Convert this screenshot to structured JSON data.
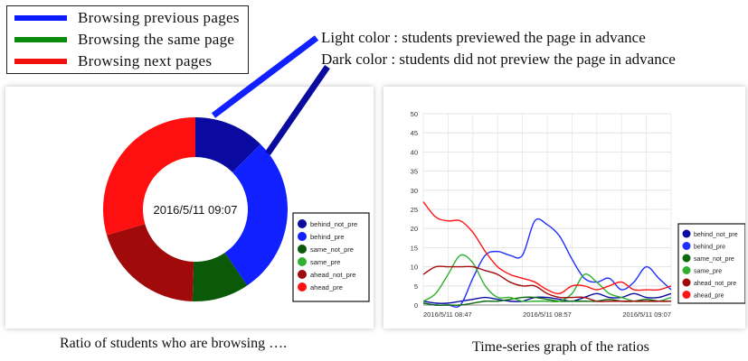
{
  "top_legend": [
    {
      "label": "Browsing previous pages",
      "color": "#0a1aff"
    },
    {
      "label": "Browsing the same page",
      "color": "#0a8a0a"
    },
    {
      "label": "Browsing next pages",
      "color": "#f01010"
    }
  ],
  "notes": {
    "light": "Light color : students previewed the page in advance",
    "dark": "Dark color : students did not preview the page in advance"
  },
  "captions": {
    "left": "Ratio of students who are browsing ….",
    "right": "Time-series graph of the ratios"
  },
  "chart_data": [
    {
      "type": "pie",
      "center_label": "2016/5/11 09:07",
      "slices": [
        {
          "name": "behind_not_pre",
          "value": 12.5,
          "color": "#0a0aa0"
        },
        {
          "name": "behind_pre",
          "value": 28,
          "color": "#1020ff"
        },
        {
          "name": "same_not_pre",
          "value": 10,
          "color": "#0a5a0a"
        },
        {
          "name": "same_pre",
          "value": 0,
          "color": "#30b030"
        },
        {
          "name": "ahead_not_pre",
          "value": 20,
          "color": "#a00a0a"
        },
        {
          "name": "ahead_pre",
          "value": 29.5,
          "color": "#ff1010"
        }
      ],
      "legend": [
        "behind_not_pre",
        "behind_pre",
        "same_not_pre",
        "same_pre",
        "ahead_not_pre",
        "ahead_pre"
      ],
      "legend_colors": [
        "#0a0aa0",
        "#1020ff",
        "#0a5a0a",
        "#30b030",
        "#a00a0a",
        "#ff1010"
      ]
    },
    {
      "type": "line",
      "yticks": [
        0,
        5,
        10,
        15,
        20,
        25,
        30,
        35,
        40,
        45,
        50
      ],
      "ylim": [
        0,
        50
      ],
      "xlim": [
        0,
        20
      ],
      "xtick_labels": [
        {
          "x": 0,
          "label": "2016/5/11 08:47"
        },
        {
          "x": 10,
          "label": "2016/5/11 08:57"
        },
        {
          "x": 20,
          "label": "2016/5/11 09:07"
        }
      ],
      "grid": true,
      "legend_position": "right",
      "series": [
        {
          "name": "behind_not_pre",
          "color": "#0a0aa0",
          "points": [
            [
              0,
              1
            ],
            [
              1,
              0.5
            ],
            [
              2,
              0.5
            ],
            [
              3,
              1
            ],
            [
              4,
              1.5
            ],
            [
              5,
              2
            ],
            [
              6,
              1.5
            ],
            [
              7,
              1
            ],
            [
              8,
              1
            ],
            [
              9,
              2
            ],
            [
              10,
              2
            ],
            [
              11,
              1.5
            ],
            [
              12,
              1
            ],
            [
              13,
              2
            ],
            [
              14,
              3
            ],
            [
              15,
              2
            ],
            [
              16,
              2
            ],
            [
              17,
              3
            ],
            [
              18,
              2
            ],
            [
              19,
              2
            ],
            [
              20,
              3
            ]
          ]
        },
        {
          "name": "behind_pre",
          "color": "#2030ff",
          "points": [
            [
              0,
              0.5
            ],
            [
              1,
              0
            ],
            [
              2,
              0
            ],
            [
              3,
              0
            ],
            [
              4,
              7
            ],
            [
              5,
              13
            ],
            [
              6,
              14
            ],
            [
              7,
              13
            ],
            [
              8,
              13
            ],
            [
              9,
              22
            ],
            [
              10,
              21
            ],
            [
              11,
              18
            ],
            [
              12,
              12
            ],
            [
              13,
              7
            ],
            [
              14,
              6
            ],
            [
              15,
              7
            ],
            [
              16,
              4
            ],
            [
              17,
              6
            ],
            [
              18,
              10
            ],
            [
              19,
              7
            ],
            [
              20,
              4
            ]
          ]
        },
        {
          "name": "same_not_pre",
          "color": "#0a6a0a",
          "points": [
            [
              0,
              0.5
            ],
            [
              1,
              0
            ],
            [
              2,
              0
            ],
            [
              3,
              0
            ],
            [
              4,
              0.5
            ],
            [
              5,
              1
            ],
            [
              6,
              1
            ],
            [
              7,
              1.5
            ],
            [
              8,
              2
            ],
            [
              9,
              2
            ],
            [
              10,
              1.5
            ],
            [
              11,
              1
            ],
            [
              12,
              1
            ],
            [
              13,
              1
            ],
            [
              14,
              1
            ],
            [
              15,
              1.5
            ],
            [
              16,
              1
            ],
            [
              17,
              1
            ],
            [
              18,
              1.5
            ],
            [
              19,
              1
            ],
            [
              20,
              1
            ]
          ]
        },
        {
          "name": "same_pre",
          "color": "#30b030",
          "points": [
            [
              0,
              1
            ],
            [
              1,
              3
            ],
            [
              2,
              8
            ],
            [
              3,
              13
            ],
            [
              4,
              11
            ],
            [
              5,
              5
            ],
            [
              6,
              2
            ],
            [
              7,
              2
            ],
            [
              8,
              1
            ],
            [
              9,
              1
            ],
            [
              10,
              1
            ],
            [
              11,
              1
            ],
            [
              12,
              3
            ],
            [
              13,
              8
            ],
            [
              14,
              6
            ],
            [
              15,
              3
            ],
            [
              16,
              2
            ],
            [
              17,
              1
            ],
            [
              18,
              1
            ],
            [
              19,
              1
            ],
            [
              20,
              2
            ]
          ]
        },
        {
          "name": "ahead_not_pre",
          "color": "#a00a0a",
          "points": [
            [
              0,
              8
            ],
            [
              1,
              10
            ],
            [
              2,
              10
            ],
            [
              3,
              10
            ],
            [
              4,
              10
            ],
            [
              5,
              9
            ],
            [
              6,
              8
            ],
            [
              7,
              6
            ],
            [
              8,
              5
            ],
            [
              9,
              5
            ],
            [
              10,
              3
            ],
            [
              11,
              2
            ],
            [
              12,
              2
            ],
            [
              13,
              2
            ],
            [
              14,
              1
            ],
            [
              15,
              1
            ],
            [
              16,
              1
            ],
            [
              17,
              1
            ],
            [
              18,
              1
            ],
            [
              19,
              1
            ],
            [
              20,
              1
            ]
          ]
        },
        {
          "name": "ahead_pre",
          "color": "#ff1515",
          "points": [
            [
              0,
              27
            ],
            [
              1,
              23
            ],
            [
              2,
              22
            ],
            [
              3,
              22
            ],
            [
              4,
              19
            ],
            [
              5,
              14
            ],
            [
              6,
              10
            ],
            [
              7,
              8
            ],
            [
              8,
              7
            ],
            [
              9,
              6
            ],
            [
              10,
              4
            ],
            [
              11,
              3
            ],
            [
              12,
              5
            ],
            [
              13,
              5
            ],
            [
              14,
              4
            ],
            [
              15,
              5
            ],
            [
              16,
              6
            ],
            [
              17,
              4
            ],
            [
              18,
              4
            ],
            [
              19,
              4
            ],
            [
              20,
              5
            ]
          ]
        }
      ],
      "legend": [
        "behind_not_pre",
        "behind_pre",
        "same_not_pre",
        "same_pre",
        "ahead_not_pre",
        "ahead_pre"
      ]
    }
  ]
}
